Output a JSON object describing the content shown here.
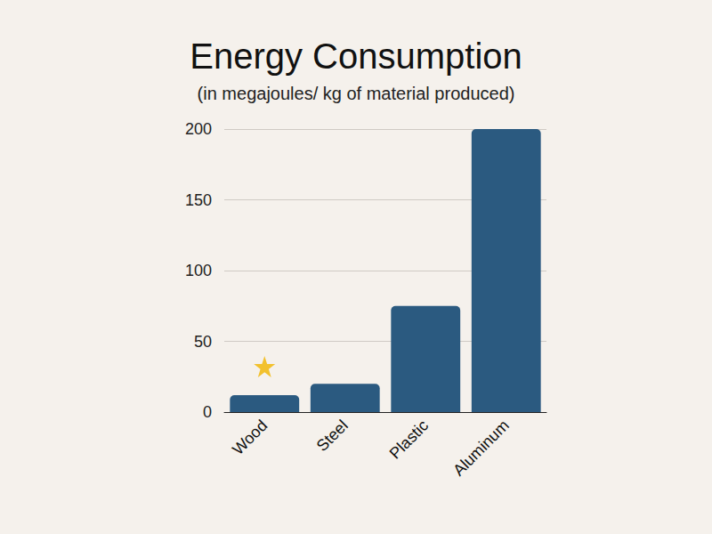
{
  "chart_data": {
    "type": "bar",
    "title": "Energy Consumption",
    "subtitle": "(in megajoules/ kg of material produced)",
    "categories": [
      "Wood",
      "Steel",
      "Plastic",
      "Aluminum"
    ],
    "values": [
      12,
      20,
      75,
      200
    ],
    "color": "#2b5a80",
    "ylim": [
      0,
      200
    ],
    "yticks": [
      0,
      50,
      100,
      150,
      200
    ],
    "grid": true
  }
}
